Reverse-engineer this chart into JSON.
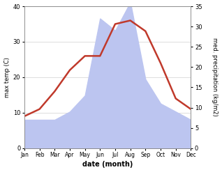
{
  "months": [
    "Jan",
    "Feb",
    "Mar",
    "Apr",
    "May",
    "Jun",
    "Jul",
    "Aug",
    "Sep",
    "Oct",
    "Nov",
    "Dec"
  ],
  "month_indices": [
    0,
    1,
    2,
    3,
    4,
    5,
    6,
    7,
    8,
    9,
    10,
    11
  ],
  "temp": [
    9,
    11,
    16,
    22,
    26,
    26,
    35,
    36,
    33,
    24,
    14,
    11
  ],
  "precip": [
    7,
    7,
    7,
    9,
    13,
    32,
    29,
    36,
    17,
    11,
    9,
    7
  ],
  "temp_color": "#c0392b",
  "precip_fill_color": "#bcc5f0",
  "temp_ylim": [
    0,
    40
  ],
  "precip_ylim": [
    0,
    35
  ],
  "temp_yticks": [
    0,
    10,
    20,
    30,
    40
  ],
  "precip_yticks": [
    0,
    5,
    10,
    15,
    20,
    25,
    30,
    35
  ],
  "xlabel": "date (month)",
  "ylabel_left": "max temp (C)",
  "ylabel_right": "med. precipitation (kg/m2)",
  "bg_color": "#ffffff",
  "grid_color": "#d0d0d0"
}
